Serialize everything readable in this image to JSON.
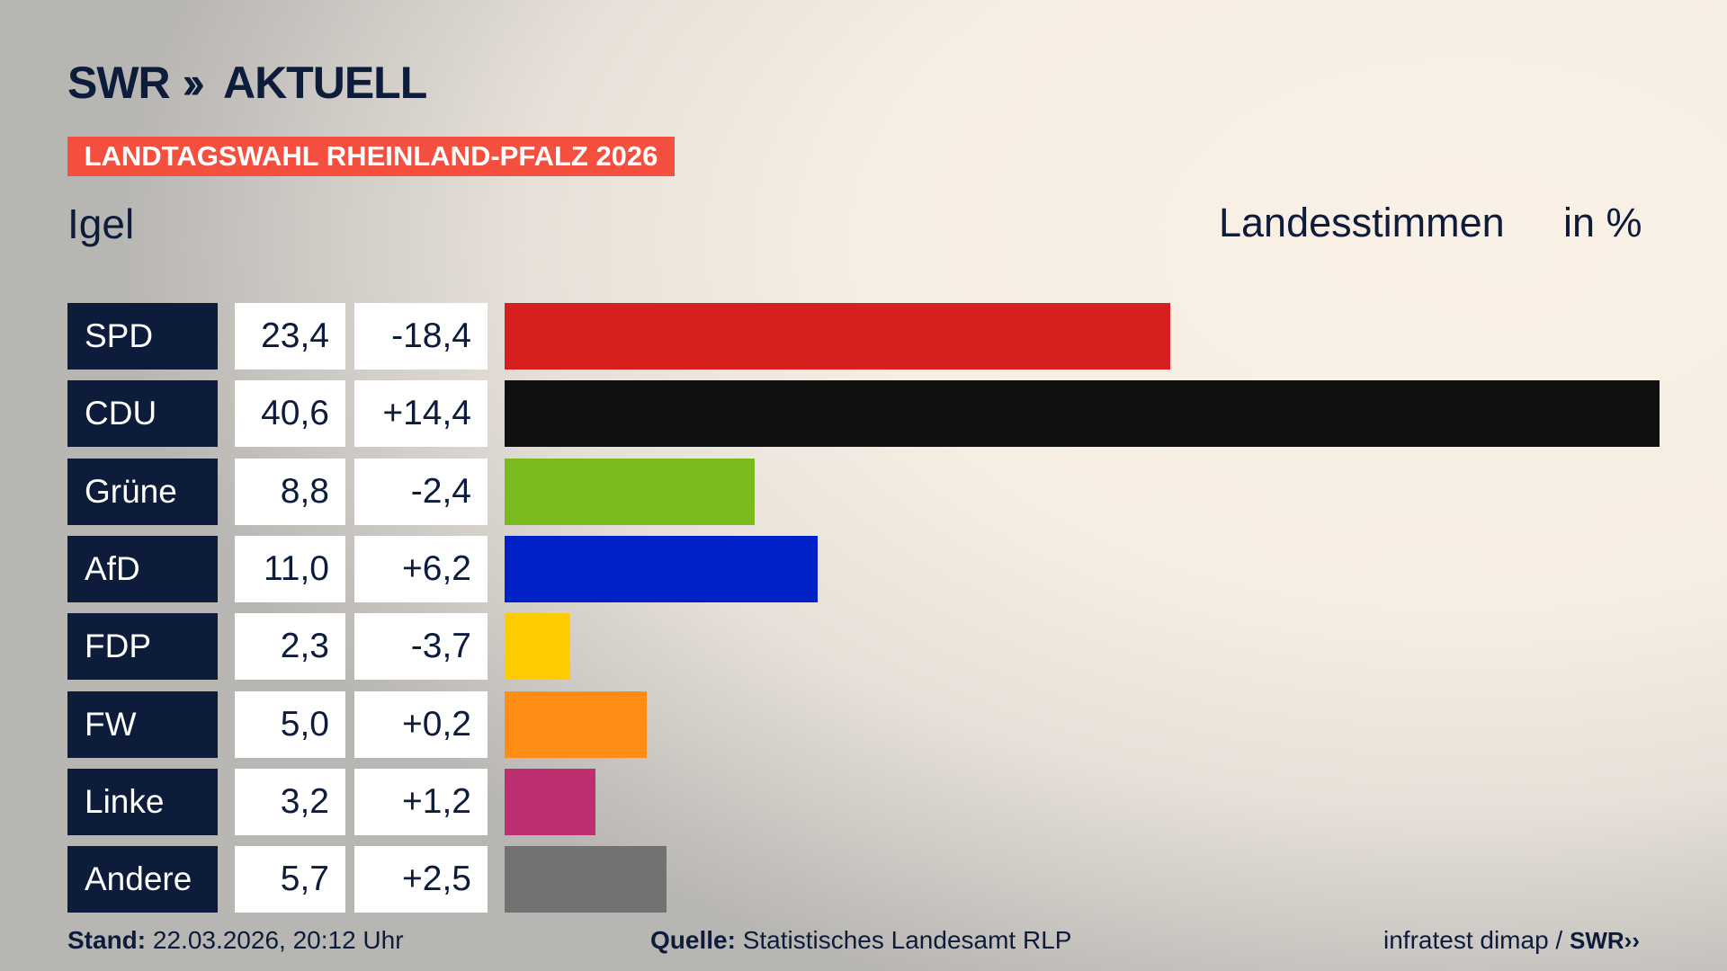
{
  "header": {
    "logo_text": "SWR",
    "logo_suffix": "AKTUELL",
    "banner": "LANDTAGSWAHL RHEINLAND-PFALZ 2026",
    "region": "Igel",
    "measure": "Landesstimmen",
    "unit": "in %"
  },
  "chart_data": {
    "type": "bar",
    "orientation": "horizontal",
    "categories": [
      "SPD",
      "CDU",
      "Grüne",
      "AfD",
      "FDP",
      "FW",
      "Linke",
      "Andere"
    ],
    "values": [
      23.4,
      40.6,
      8.8,
      11.0,
      2.3,
      5.0,
      3.2,
      5.7
    ],
    "value_labels": [
      "23,4",
      "40,6",
      "8,8",
      "11,0",
      "2,3",
      "5,0",
      "3,2",
      "5,7"
    ],
    "changes": [
      -18.4,
      14.4,
      -2.4,
      6.2,
      -3.7,
      0.2,
      1.2,
      2.5
    ],
    "change_labels": [
      "-18,4",
      "+14,4",
      "-2,4",
      "+6,2",
      "-3,7",
      "+0,2",
      "+1,2",
      "+2,5"
    ],
    "colors": [
      "#d81f20",
      "#111111",
      "#7aba1c",
      "#0020c8",
      "#ffcc00",
      "#ff8c14",
      "#bd2f71",
      "#727272"
    ],
    "grid": false
  },
  "footer": {
    "stand_label": "Stand:",
    "stand_value": "22.03.2026, 20:12 Uhr",
    "source_label": "Quelle:",
    "source_value": "Statistisches Landesamt RLP",
    "credit": "infratest dimap /",
    "credit_logo": "SWR"
  },
  "colors": {
    "navy": "#0c1c3a",
    "banner": "#f5503f"
  }
}
